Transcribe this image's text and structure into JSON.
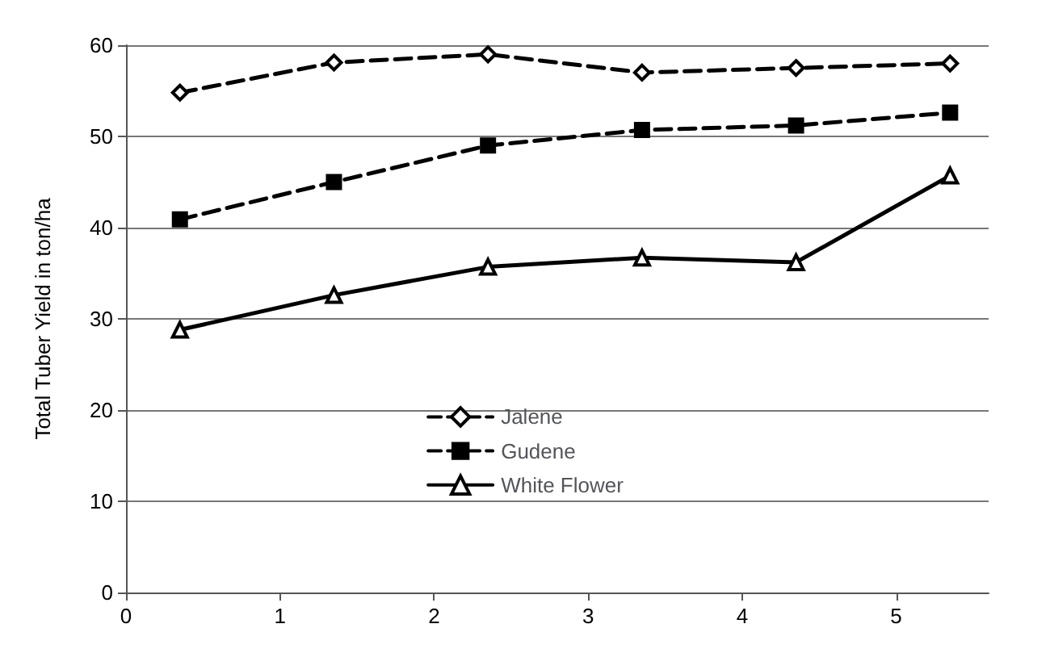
{
  "chart_data": {
    "type": "line",
    "ylabel": "Total Tuber Yield in ton/ha",
    "x": [
      0.35,
      1.35,
      2.35,
      3.35,
      4.35,
      5.35
    ],
    "xlim": [
      0,
      5.6
    ],
    "xticks": [
      0,
      1,
      2,
      3,
      4,
      5
    ],
    "ylim": [
      0,
      60
    ],
    "yticks": [
      0,
      10,
      20,
      30,
      40,
      50,
      60
    ],
    "grid": "y",
    "legend": "bottom",
    "series": [
      {
        "name": "Jalene",
        "color": "#000000",
        "marker": "diamond",
        "line_style": "dashed",
        "values": [
          54.8,
          58.1,
          59,
          57,
          57.5,
          58
        ]
      },
      {
        "name": "Gudene",
        "color": "#000000",
        "marker": "square",
        "line_style": "dashed",
        "values": [
          40.9,
          45,
          49,
          50.7,
          51.2,
          52.6
        ]
      },
      {
        "name": "White Flower",
        "color": "#000000",
        "marker": "triangle",
        "line_style": "solid",
        "values": [
          28.8,
          32.6,
          35.7,
          36.7,
          36.2,
          45.7
        ]
      }
    ]
  }
}
